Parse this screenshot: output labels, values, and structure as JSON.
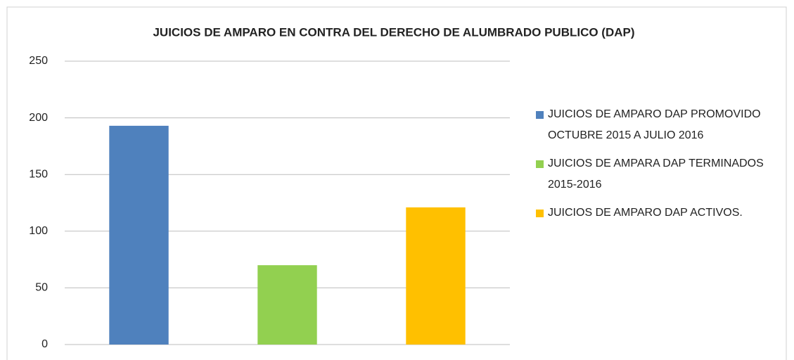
{
  "chart_data": {
    "type": "bar",
    "title": "JUICIOS DE AMPARO EN CONTRA DEL DERECHO DE ALUMBRADO PUBLICO (DAP)",
    "categories": [
      null
    ],
    "series": [
      {
        "name": "JUICIOS DE AMPARO DAP PROMOVIDO OCTUBRE 2015 A JULIO 2016",
        "color": "#4f81bd",
        "values": [
          193
        ]
      },
      {
        "name": "JUICIOS DE AMPARA DAP TERMINADOS 2015-2016",
        "color": "#92d050",
        "values": [
          70
        ]
      },
      {
        "name": "JUICIOS DE AMPARO DAP ACTIVOS.",
        "color": "#ffc000",
        "values": [
          121
        ]
      }
    ],
    "ylim": [
      0,
      250
    ],
    "yticks": [
      0,
      50,
      100,
      150,
      200,
      250
    ],
    "grid": true,
    "legend": "right"
  }
}
